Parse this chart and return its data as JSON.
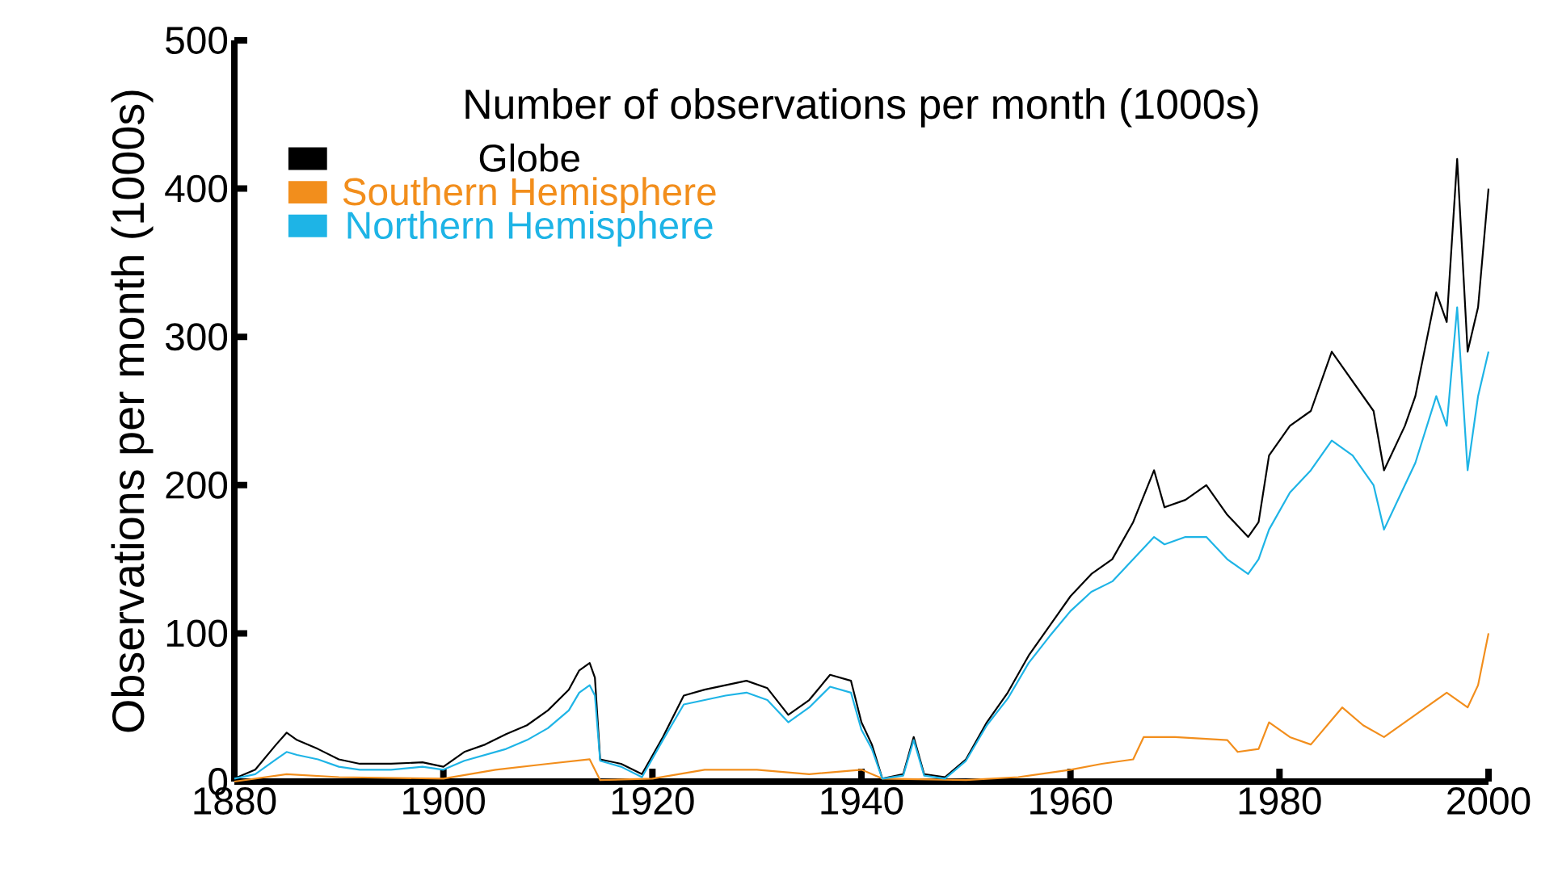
{
  "chart_data": {
    "type": "line",
    "title": "Number of observations per month (1000s)",
    "ylabel": "Observations per month (1000s)",
    "legend": "top left",
    "xlim": [
      1880,
      2000
    ],
    "xticks": [
      1880,
      1900,
      1920,
      1940,
      1960,
      1980,
      2000
    ],
    "ylim": [
      0,
      500
    ],
    "yticks": [
      0,
      100,
      200,
      300,
      400,
      500
    ],
    "series": [
      {
        "name": "Globe",
        "color": "#000000",
        "x": [
          1880,
          1882,
          1884,
          1885,
          1886,
          1888,
          1890,
          1892,
          1895,
          1898,
          1900,
          1902,
          1904,
          1906,
          1908,
          1910,
          1912,
          1913,
          1914,
          1914.5,
          1915,
          1917,
          1919,
          1921,
          1923,
          1925,
          1927,
          1929,
          1931,
          1933,
          1935,
          1937,
          1939,
          1940,
          1941,
          1942,
          1944,
          1945,
          1946,
          1948,
          1950,
          1952,
          1954,
          1956,
          1958,
          1960,
          1962,
          1964,
          1966,
          1968,
          1969,
          1971,
          1973,
          1975,
          1977,
          1978,
          1979,
          1981,
          1983,
          1985,
          1987,
          1989,
          1990,
          1992,
          1993,
          1995,
          1996,
          1997,
          1998,
          1999,
          2000
        ],
        "values": [
          2,
          8,
          25,
          33,
          28,
          22,
          15,
          12,
          12,
          13,
          10,
          20,
          25,
          32,
          38,
          48,
          62,
          75,
          80,
          70,
          15,
          12,
          5,
          30,
          58,
          62,
          65,
          68,
          63,
          45,
          55,
          72,
          68,
          40,
          25,
          2,
          5,
          30,
          5,
          3,
          15,
          40,
          60,
          85,
          105,
          125,
          140,
          150,
          175,
          210,
          185,
          190,
          200,
          180,
          165,
          175,
          220,
          240,
          250,
          290,
          270,
          250,
          210,
          240,
          260,
          330,
          310,
          420,
          290,
          320,
          400
        ]
      },
      {
        "name": "Southern Hemisphere",
        "color": "#f28e1c",
        "x": [
          1880,
          1885,
          1890,
          1900,
          1905,
          1910,
          1914,
          1915,
          1920,
          1925,
          1930,
          1935,
          1940,
          1942,
          1950,
          1955,
          1960,
          1963,
          1966,
          1967,
          1970,
          1975,
          1976,
          1978,
          1979,
          1981,
          1983,
          1986,
          1988,
          1990,
          1993,
          1996,
          1998,
          1999,
          2000
        ],
        "values": [
          0,
          5,
          3,
          2,
          8,
          12,
          15,
          1,
          2,
          8,
          8,
          5,
          8,
          2,
          1,
          3,
          8,
          12,
          15,
          30,
          30,
          28,
          20,
          22,
          40,
          30,
          25,
          50,
          38,
          30,
          45,
          60,
          50,
          65,
          100
        ]
      },
      {
        "name": "Northern Hemisphere",
        "color": "#1eb4e6",
        "x": [
          1880,
          1882,
          1884,
          1885,
          1886,
          1888,
          1890,
          1892,
          1895,
          1898,
          1900,
          1902,
          1904,
          1906,
          1908,
          1910,
          1912,
          1913,
          1914,
          1914.5,
          1915,
          1917,
          1919,
          1921,
          1923,
          1925,
          1927,
          1929,
          1931,
          1933,
          1935,
          1937,
          1939,
          1940,
          1941,
          1942,
          1944,
          1945,
          1946,
          1948,
          1950,
          1952,
          1954,
          1956,
          1958,
          1960,
          1962,
          1964,
          1966,
          1968,
          1969,
          1971,
          1973,
          1975,
          1977,
          1978,
          1979,
          1981,
          1983,
          1985,
          1987,
          1989,
          1990,
          1992,
          1993,
          1995,
          1996,
          1997,
          1998,
          1999,
          2000
        ],
        "values": [
          2,
          5,
          15,
          20,
          18,
          15,
          10,
          8,
          8,
          10,
          8,
          14,
          18,
          22,
          28,
          36,
          48,
          60,
          65,
          58,
          14,
          10,
          3,
          28,
          52,
          55,
          58,
          60,
          55,
          40,
          50,
          64,
          60,
          35,
          22,
          2,
          4,
          28,
          4,
          2,
          14,
          38,
          56,
          80,
          98,
          115,
          128,
          135,
          150,
          165,
          160,
          165,
          165,
          150,
          140,
          150,
          170,
          195,
          210,
          230,
          220,
          200,
          170,
          200,
          215,
          260,
          240,
          320,
          210,
          260,
          290
        ]
      }
    ]
  }
}
